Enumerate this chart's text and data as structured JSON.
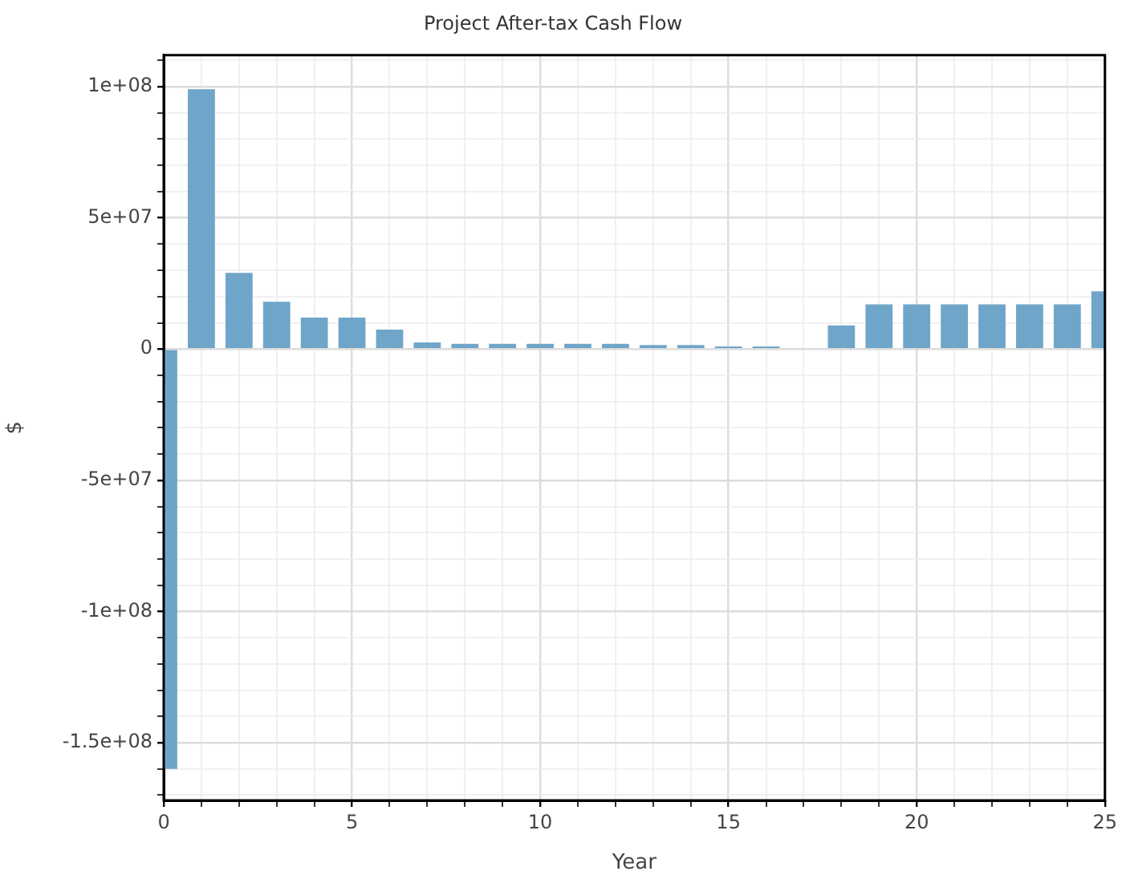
{
  "chart_data": {
    "type": "bar",
    "title": "Project After-tax Cash Flow",
    "xlabel": "Year",
    "ylabel": "$",
    "x": [
      0,
      1,
      2,
      3,
      4,
      5,
      6,
      7,
      8,
      9,
      10,
      11,
      12,
      13,
      14,
      15,
      16,
      17,
      18,
      19,
      20,
      21,
      22,
      23,
      24,
      25
    ],
    "values": [
      -160000000,
      99000000,
      29000000,
      18000000,
      12000000,
      12000000,
      7400000,
      2500000,
      2000000,
      2000000,
      2000000,
      2000000,
      2000000,
      1500000,
      1500000,
      1000000,
      1000000,
      0,
      9000000,
      17000000,
      17000000,
      17000000,
      17000000,
      17000000,
      17000000,
      22000000
    ],
    "color": "#6fa5c8",
    "xlim": [
      0,
      25
    ],
    "xticks": [
      0,
      {
        "value": 1,
        "label": null
      },
      {
        "value": 2,
        "label": null
      },
      {
        "value": 3,
        "label": null
      },
      {
        "value": 4,
        "label": null
      },
      5,
      {
        "value": 6,
        "label": null
      },
      {
        "value": 7,
        "label": null
      },
      {
        "value": 8,
        "label": null
      },
      {
        "value": 9,
        "label": null
      },
      10,
      {
        "value": 11,
        "label": null
      },
      {
        "value": 12,
        "label": null
      },
      {
        "value": 13,
        "label": null
      },
      {
        "value": 14,
        "label": null
      },
      15,
      {
        "value": 16,
        "label": null
      },
      {
        "value": 17,
        "label": null
      },
      {
        "value": 18,
        "label": null
      },
      {
        "value": 19,
        "label": null
      },
      20,
      {
        "value": 21,
        "label": null
      },
      {
        "value": 22,
        "label": null
      },
      {
        "value": 23,
        "label": null
      },
      {
        "value": 24,
        "label": null
      },
      25
    ],
    "ylim": [
      -172000000,
      112000000
    ],
    "yticks": [
      {
        "value": -170000000,
        "label": null
      },
      {
        "value": -160000000,
        "label": null
      },
      {
        "value": -150000000,
        "label": "-1.5e+08"
      },
      {
        "value": -140000000,
        "label": null
      },
      {
        "value": -130000000,
        "label": null
      },
      {
        "value": -120000000,
        "label": null
      },
      {
        "value": -110000000,
        "label": null
      },
      {
        "value": -100000000,
        "label": "-1e+08"
      },
      {
        "value": -90000000,
        "label": null
      },
      {
        "value": -80000000,
        "label": null
      },
      {
        "value": -70000000,
        "label": null
      },
      {
        "value": -60000000,
        "label": null
      },
      {
        "value": -50000000,
        "label": "-5e+07"
      },
      {
        "value": -40000000,
        "label": null
      },
      {
        "value": -30000000,
        "label": null
      },
      {
        "value": -20000000,
        "label": null
      },
      {
        "value": -10000000,
        "label": null
      },
      0,
      {
        "value": 10000000,
        "label": null
      },
      {
        "value": 20000000,
        "label": null
      },
      {
        "value": 30000000,
        "label": null
      },
      {
        "value": 40000000,
        "label": null
      },
      {
        "value": 50000000,
        "label": "5e+07"
      },
      {
        "value": 60000000,
        "label": null
      },
      {
        "value": 70000000,
        "label": null
      },
      {
        "value": 80000000,
        "label": null
      },
      {
        "value": 90000000,
        "label": null
      },
      {
        "value": 100000000,
        "label": "1e+08"
      },
      {
        "value": 110000000,
        "label": null
      }
    ],
    "grid": true
  }
}
